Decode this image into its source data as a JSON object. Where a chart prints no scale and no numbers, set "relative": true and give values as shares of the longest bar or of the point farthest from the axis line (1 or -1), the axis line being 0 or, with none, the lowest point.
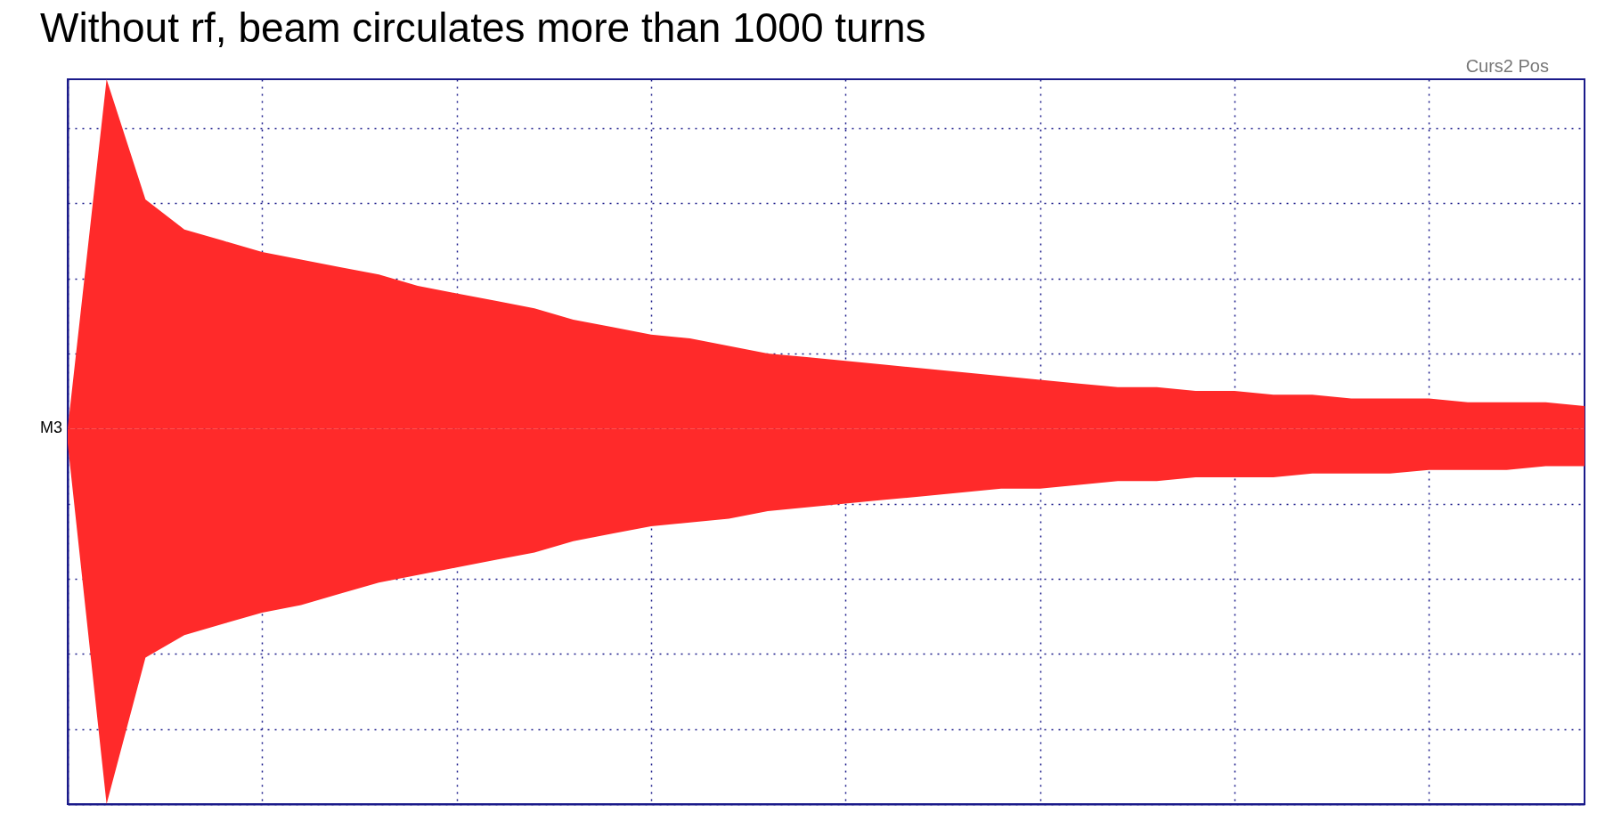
{
  "chart_data": {
    "type": "area",
    "title": "Without rf, beam circulates more than 1000 turns",
    "relative": true,
    "grid": true,
    "annotations": [
      "M3",
      "Curs2 Pos"
    ],
    "categories": [
      null,
      null,
      null,
      null,
      null,
      null,
      null,
      null,
      null,
      null,
      null,
      null,
      null,
      null,
      null,
      null,
      null,
      null,
      null,
      null,
      null,
      null,
      null,
      null,
      null,
      null,
      null,
      null,
      null,
      null,
      null,
      null,
      null,
      null,
      null,
      null,
      null,
      null,
      null,
      null
    ],
    "series": [
      {
        "color": "#ff2a2a",
        "values": [
          0,
          0.93,
          0.61,
          0.53,
          0.5,
          0.47,
          0.45,
          0.43,
          0.41,
          0.38,
          0.36,
          0.34,
          0.32,
          0.29,
          0.27,
          0.25,
          0.24,
          0.22,
          0.2,
          0.19,
          0.18,
          0.17,
          0.16,
          0.15,
          0.14,
          0.13,
          0.12,
          0.11,
          0.11,
          0.1,
          0.1,
          0.09,
          0.09,
          0.08,
          0.08,
          0.08,
          0.07,
          0.07,
          0.07,
          0.06
        ]
      },
      {
        "color": "#ff2a2a",
        "values": [
          -0.04,
          -1,
          -0.61,
          -0.55,
          -0.52,
          -0.49,
          -0.47,
          -0.44,
          -0.41,
          -0.39,
          -0.37,
          -0.35,
          -0.33,
          -0.3,
          -0.28,
          -0.26,
          -0.25,
          -0.24,
          -0.22,
          -0.21,
          -0.2,
          -0.19,
          -0.18,
          -0.17,
          -0.16,
          -0.16,
          -0.15,
          -0.14,
          -0.14,
          -0.13,
          -0.13,
          -0.13,
          -0.12,
          -0.12,
          -0.12,
          -0.11,
          -0.11,
          -0.11,
          -0.1,
          -0.1
        ]
      }
    ]
  }
}
